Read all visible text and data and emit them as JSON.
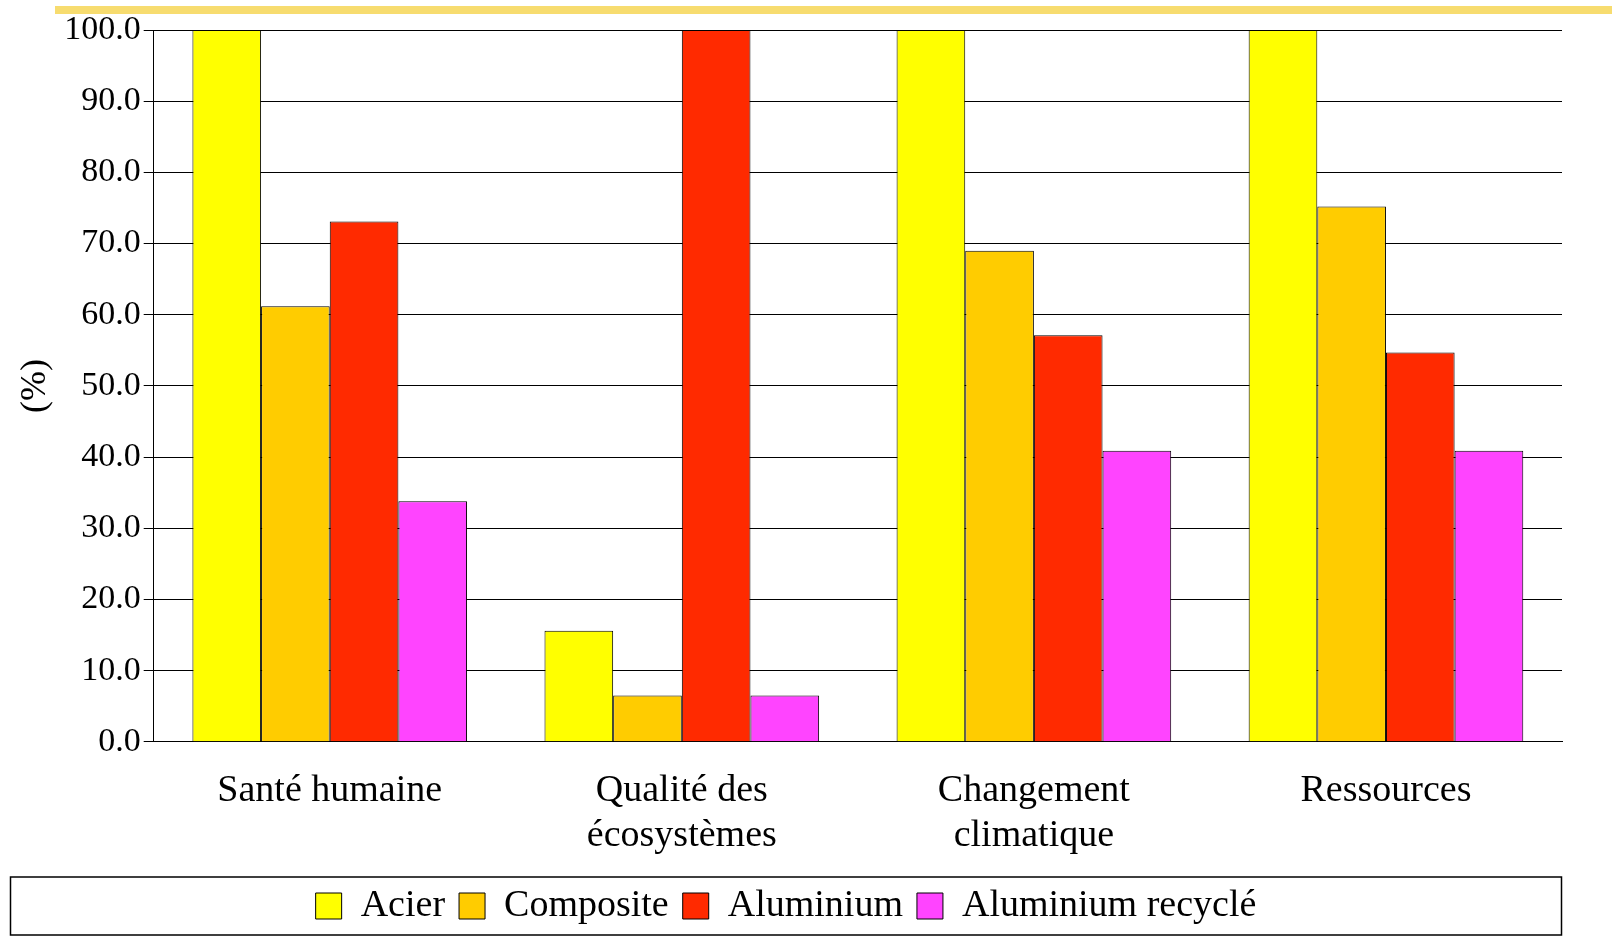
{
  "chart_data": {
    "type": "bar",
    "ylabel": "(%)",
    "categories": [
      "Santé humaine",
      "Qualité des écosystèmes",
      "Changement climatique",
      "Ressources"
    ],
    "series": [
      {
        "name": "Acier",
        "color": "#ffff00",
        "values": [
          100,
          15.6,
          100,
          100
        ]
      },
      {
        "name": "Composite",
        "color": "#ffcc00",
        "values": [
          61.2,
          6.5,
          69.0,
          75.2
        ]
      },
      {
        "name": "Aluminium",
        "color": "#ff2a00",
        "values": [
          73.1,
          100,
          57.1,
          54.7
        ]
      },
      {
        "name": "Aluminium recyclé",
        "color": "#ff44ff",
        "values": [
          33.8,
          6.5,
          40.9,
          40.9
        ]
      }
    ],
    "ylim": [
      0,
      100
    ],
    "yticks": [
      {
        "value": 0,
        "label": "0.0"
      },
      {
        "value": 10,
        "label": "10.0"
      },
      {
        "value": 20,
        "label": "20.0"
      },
      {
        "value": 30,
        "label": "30.0"
      },
      {
        "value": 40,
        "label": "40.0"
      },
      {
        "value": 50,
        "label": "50.0"
      },
      {
        "value": 60,
        "label": "60.0"
      },
      {
        "value": 70,
        "label": "70.0"
      },
      {
        "value": 80,
        "label": "80.0"
      },
      {
        "value": 90,
        "label": "90.0"
      },
      {
        "value": 100,
        "label": "100.0"
      }
    ],
    "grid": "y",
    "legend": "bottom"
  }
}
